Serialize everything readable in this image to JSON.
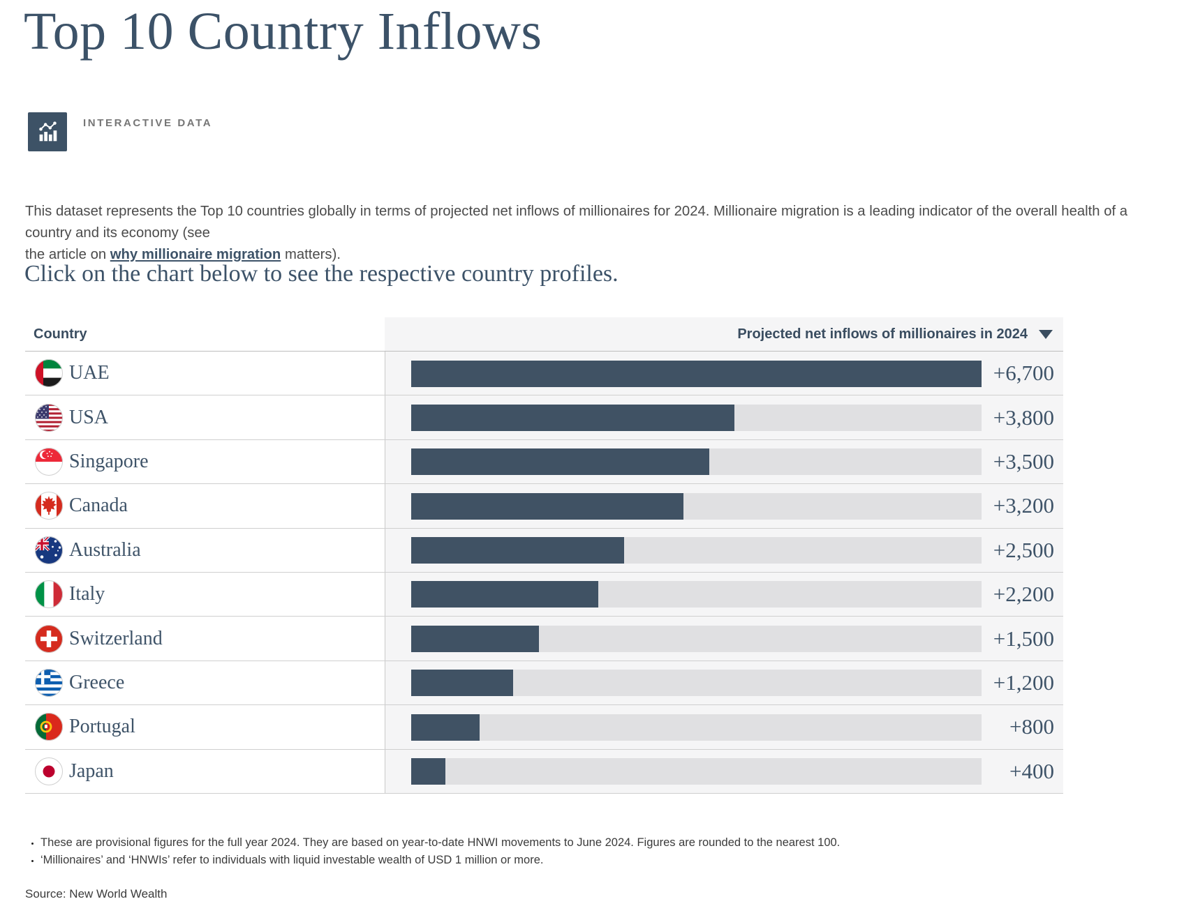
{
  "page": {
    "title": "Top 10 Country Inflows",
    "interactive_data_label": "INTERACTIVE DATA",
    "description": {
      "line1": "This dataset represents the Top 10 countries globally in terms of projected net inflows of millionaires for 2024. Millionaire migration is a leading indicator of the overall health of a country and its economy (see",
      "line2_before": "the article on ",
      "link_label": "why millionaire migration",
      "line2_after": " matters)."
    },
    "subtitle": "Click on the chart below to see the respective country profiles.",
    "footnotes": [
      "These are provisional figures for the full year 2024. They are based on year-to-date HNWI movements to June 2024. Figures are rounded to the nearest 100.",
      "‘Millionaires’ and ‘HNWIs’ refer to individuals with liquid investable wealth of USD 1 million or more."
    ],
    "source": "Source: New World Wealth"
  },
  "table": {
    "country_header": "Country",
    "value_header": "Projected net inflows of millionaires in 2024",
    "sort_icon": "sort-descending-triangle",
    "rows": [
      {
        "country": "UAE",
        "flag": "uae-flag-icon",
        "value": 6700,
        "value_label": "+6,700"
      },
      {
        "country": "USA",
        "flag": "usa-flag-icon",
        "value": 3800,
        "value_label": "+3,800"
      },
      {
        "country": "Singapore",
        "flag": "singapore-flag-icon",
        "value": 3500,
        "value_label": "+3,500"
      },
      {
        "country": "Canada",
        "flag": "canada-flag-icon",
        "value": 3200,
        "value_label": "+3,200"
      },
      {
        "country": "Australia",
        "flag": "australia-flag-icon",
        "value": 2500,
        "value_label": "+2,500"
      },
      {
        "country": "Italy",
        "flag": "italy-flag-icon",
        "value": 2200,
        "value_label": "+2,200"
      },
      {
        "country": "Switzerland",
        "flag": "switzerland-flag-icon",
        "value": 1500,
        "value_label": "+1,500"
      },
      {
        "country": "Greece",
        "flag": "greece-flag-icon",
        "value": 1200,
        "value_label": "+1,200"
      },
      {
        "country": "Portugal",
        "flag": "portugal-flag-icon",
        "value": 800,
        "value_label": "+800"
      },
      {
        "country": "Japan",
        "flag": "japan-flag-icon",
        "value": 400,
        "value_label": "+400"
      }
    ]
  },
  "chart_data": {
    "type": "bar",
    "orientation": "horizontal",
    "title": "Top 10 Country Inflows",
    "categories": [
      "UAE",
      "USA",
      "Singapore",
      "Canada",
      "Australia",
      "Italy",
      "Switzerland",
      "Greece",
      "Portugal",
      "Japan"
    ],
    "values": [
      6700,
      3800,
      3500,
      3200,
      2500,
      2200,
      1500,
      1200,
      800,
      400
    ],
    "value_labels": [
      "+6,700",
      "+3,800",
      "+3,500",
      "+3,200",
      "+2,500",
      "+2,200",
      "+1,500",
      "+1,200",
      "+800",
      "+400"
    ],
    "xlabel": "Projected net inflows of millionaires in 2024",
    "xlim": [
      0,
      6700
    ],
    "grid": false,
    "legend": "none",
    "bar_color": "#405264",
    "track_color": "#e0e0e2",
    "cell_background": "#f5f5f6"
  },
  "colors": {
    "accent_dark_slate": "#3d5266",
    "serif_text": "#3e5368",
    "body_text": "#4b4b4b",
    "row_border": "#cfcfcf"
  }
}
